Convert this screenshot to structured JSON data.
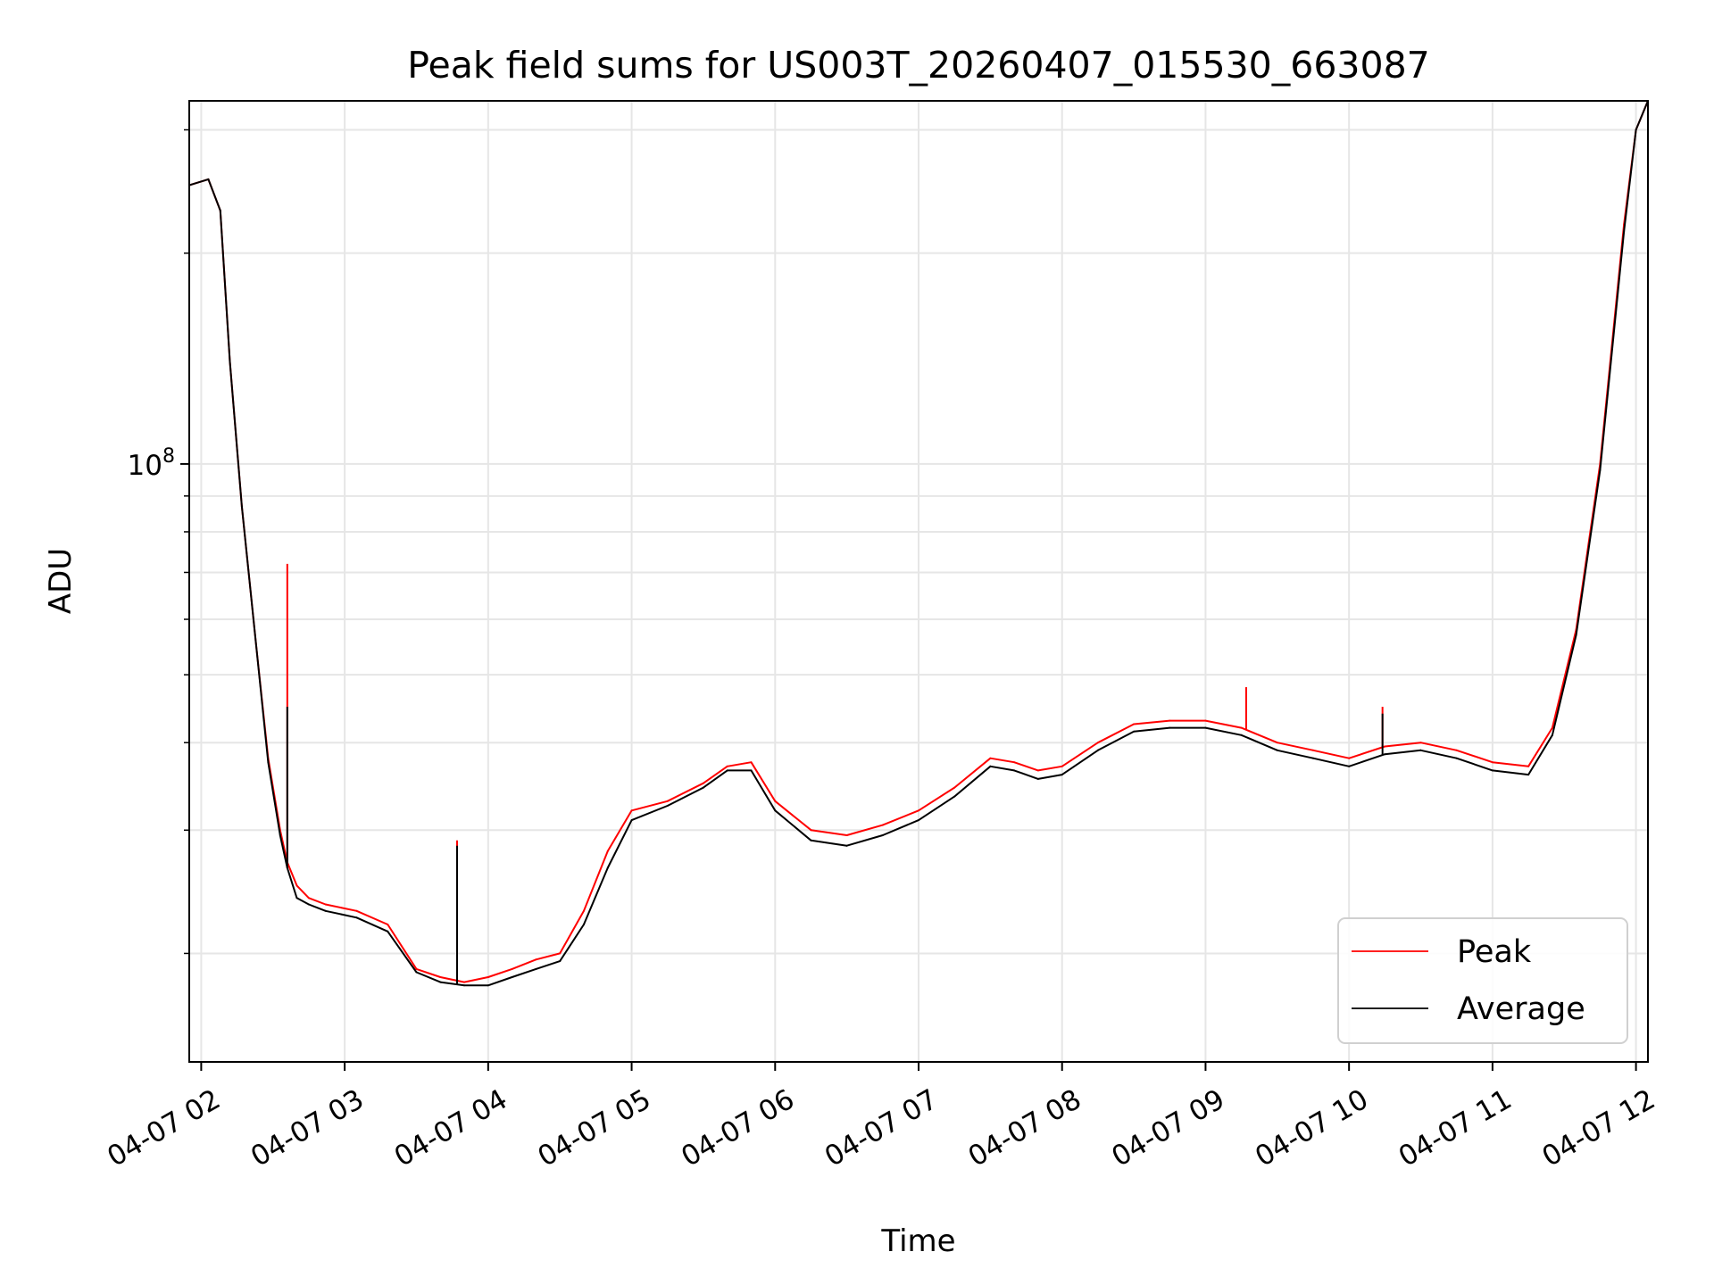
{
  "chart_data": {
    "type": "line",
    "title": "Peak field sums for US003T_20260407_015530_663087",
    "xlabel": "Time",
    "ylabel": "ADU",
    "x_range": [
      "2026-04-07 01:55",
      "2026-04-07 12:05"
    ],
    "y_range": [
      14000000,
      330000000
    ],
    "yscale": "log",
    "grid": true,
    "legend_position": "lower-right",
    "x_ticks": [
      "04-07 02",
      "04-07 03",
      "04-07 04",
      "04-07 05",
      "04-07 06",
      "04-07 07",
      "04-07 08",
      "04-07 09",
      "04-07 10",
      "04-07 11",
      "04-07 12"
    ],
    "y_major_ticks": [
      {
        "value": 100000000,
        "base": "10",
        "exp": "8"
      }
    ],
    "y_minor_ticks": [
      20000000,
      30000000,
      40000000,
      50000000,
      60000000,
      70000000,
      80000000,
      90000000,
      200000000,
      300000000
    ],
    "series": [
      {
        "name": "Peak",
        "color": "#ff0000",
        "x": [
          "2026-04-07 01:55",
          "2026-04-07 02:03",
          "2026-04-07 02:08",
          "2026-04-07 02:12",
          "2026-04-07 02:17",
          "2026-04-07 02:23",
          "2026-04-07 02:28",
          "2026-04-07 02:33",
          "2026-04-07 02:36",
          "2026-04-07 02:40",
          "2026-04-07 02:45",
          "2026-04-07 02:52",
          "2026-04-07 03:05",
          "2026-04-07 03:18",
          "2026-04-07 03:30",
          "2026-04-07 03:40",
          "2026-04-07 03:50",
          "2026-04-07 04:00",
          "2026-04-07 04:10",
          "2026-04-07 04:20",
          "2026-04-07 04:30",
          "2026-04-07 04:40",
          "2026-04-07 04:50",
          "2026-04-07 05:00",
          "2026-04-07 05:15",
          "2026-04-07 05:30",
          "2026-04-07 05:40",
          "2026-04-07 05:50",
          "2026-04-07 06:00",
          "2026-04-07 06:15",
          "2026-04-07 06:30",
          "2026-04-07 06:45",
          "2026-04-07 07:00",
          "2026-04-07 07:15",
          "2026-04-07 07:30",
          "2026-04-07 07:40",
          "2026-04-07 07:50",
          "2026-04-07 08:00",
          "2026-04-07 08:15",
          "2026-04-07 08:30",
          "2026-04-07 08:45",
          "2026-04-07 09:00",
          "2026-04-07 09:15",
          "2026-04-07 09:30",
          "2026-04-07 09:45",
          "2026-04-07 10:00",
          "2026-04-07 10:15",
          "2026-04-07 10:30",
          "2026-04-07 10:45",
          "2026-04-07 11:00",
          "2026-04-07 11:15",
          "2026-04-07 11:25",
          "2026-04-07 11:35",
          "2026-04-07 11:45",
          "2026-04-07 11:55",
          "2026-04-07 12:00",
          "2026-04-07 12:05"
        ],
        "y": [
          250000000,
          255000000,
          230000000,
          140000000,
          87000000,
          55000000,
          38000000,
          30000000,
          27000000,
          25000000,
          24000000,
          23500000,
          23000000,
          22000000,
          19000000,
          18500000,
          18200000,
          18500000,
          19000000,
          19600000,
          20000000,
          23000000,
          28000000,
          32000000,
          33000000,
          35000000,
          37000000,
          37500000,
          33000000,
          30000000,
          29500000,
          30500000,
          32000000,
          34500000,
          38000000,
          37500000,
          36500000,
          37000000,
          40000000,
          42500000,
          43000000,
          43000000,
          42000000,
          40000000,
          39000000,
          38000000,
          39500000,
          40000000,
          39000000,
          37500000,
          37000000,
          42000000,
          58000000,
          100000000,
          220000000,
          300000000,
          330000000
        ],
        "spikes": [
          {
            "x": "2026-04-07 02:36",
            "y": 72000000
          },
          {
            "x": "2026-04-07 03:47",
            "y": 29000000
          },
          {
            "x": "2026-04-07 09:17",
            "y": 48000000
          },
          {
            "x": "2026-04-07 10:14",
            "y": 45000000
          }
        ]
      },
      {
        "name": "Average",
        "color": "#000000",
        "x": [
          "2026-04-07 01:55",
          "2026-04-07 02:03",
          "2026-04-07 02:08",
          "2026-04-07 02:12",
          "2026-04-07 02:17",
          "2026-04-07 02:23",
          "2026-04-07 02:28",
          "2026-04-07 02:33",
          "2026-04-07 02:36",
          "2026-04-07 02:40",
          "2026-04-07 02:45",
          "2026-04-07 02:52",
          "2026-04-07 03:05",
          "2026-04-07 03:18",
          "2026-04-07 03:30",
          "2026-04-07 03:40",
          "2026-04-07 03:50",
          "2026-04-07 04:00",
          "2026-04-07 04:10",
          "2026-04-07 04:20",
          "2026-04-07 04:30",
          "2026-04-07 04:40",
          "2026-04-07 04:50",
          "2026-04-07 05:00",
          "2026-04-07 05:15",
          "2026-04-07 05:30",
          "2026-04-07 05:40",
          "2026-04-07 05:50",
          "2026-04-07 06:00",
          "2026-04-07 06:15",
          "2026-04-07 06:30",
          "2026-04-07 06:45",
          "2026-04-07 07:00",
          "2026-04-07 07:15",
          "2026-04-07 07:30",
          "2026-04-07 07:40",
          "2026-04-07 07:50",
          "2026-04-07 08:00",
          "2026-04-07 08:15",
          "2026-04-07 08:30",
          "2026-04-07 08:45",
          "2026-04-07 09:00",
          "2026-04-07 09:15",
          "2026-04-07 09:30",
          "2026-04-07 09:45",
          "2026-04-07 10:00",
          "2026-04-07 10:15",
          "2026-04-07 10:30",
          "2026-04-07 10:45",
          "2026-04-07 11:00",
          "2026-04-07 11:15",
          "2026-04-07 11:25",
          "2026-04-07 11:35",
          "2026-04-07 11:45",
          "2026-04-07 11:55",
          "2026-04-07 12:00",
          "2026-04-07 12:05"
        ],
        "y": [
          250000000,
          255000000,
          230000000,
          140000000,
          87000000,
          55000000,
          37500000,
          29500000,
          26500000,
          24000000,
          23500000,
          23000000,
          22500000,
          21500000,
          18800000,
          18200000,
          18000000,
          18000000,
          18500000,
          19000000,
          19500000,
          22000000,
          26500000,
          31000000,
          32500000,
          34500000,
          36500000,
          36500000,
          32000000,
          29000000,
          28500000,
          29500000,
          31000000,
          33500000,
          37000000,
          36500000,
          35500000,
          36000000,
          39000000,
          41500000,
          42000000,
          42000000,
          41000000,
          39000000,
          38000000,
          37000000,
          38500000,
          39000000,
          38000000,
          36500000,
          36000000,
          41000000,
          57000000,
          98000000,
          215000000,
          300000000,
          330000000
        ],
        "spikes": [
          {
            "x": "2026-04-07 02:36",
            "y": 45000000
          },
          {
            "x": "2026-04-07 03:47",
            "y": 28500000
          },
          {
            "x": "2026-04-07 10:14",
            "y": 44000000
          }
        ]
      }
    ]
  }
}
